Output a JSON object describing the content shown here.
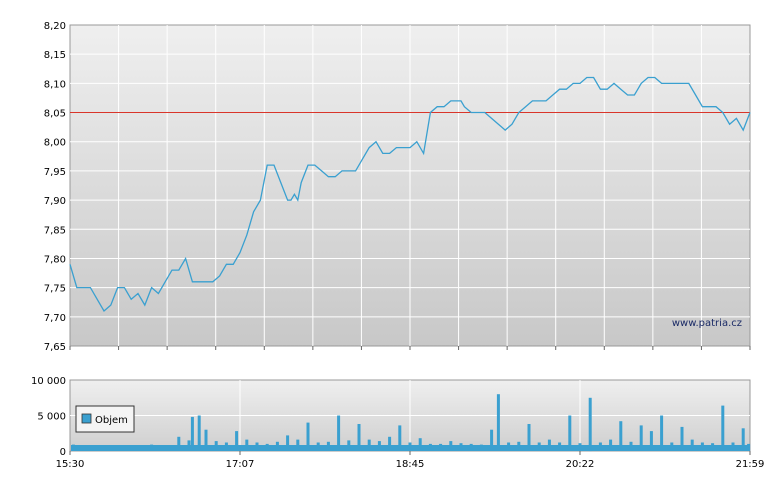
{
  "watermark": "www.patria.cz",
  "chart_data": [
    {
      "type": "line",
      "title": "",
      "xlabel": "",
      "ylabel": "",
      "ylim": [
        7.65,
        8.2
      ],
      "y_ticks": [
        "8,20",
        "8,15",
        "8,10",
        "8,05",
        "8,00",
        "7,95",
        "7,90",
        "7,85",
        "7,80",
        "7,75",
        "7,70",
        "7,65"
      ],
      "reference_line": 8.05,
      "grid": true,
      "colors": {
        "line": "#3aa0d0",
        "reference": "#d9352a",
        "grid": "#ffffff"
      },
      "x": [
        0,
        0.01,
        0.03,
        0.04,
        0.05,
        0.06,
        0.07,
        0.08,
        0.09,
        0.1,
        0.11,
        0.12,
        0.13,
        0.14,
        0.15,
        0.155,
        0.16,
        0.17,
        0.18,
        0.19,
        0.2,
        0.21,
        0.22,
        0.23,
        0.24,
        0.25,
        0.26,
        0.27,
        0.28,
        0.29,
        0.3,
        0.31,
        0.32,
        0.325,
        0.33,
        0.335,
        0.34,
        0.35,
        0.36,
        0.37,
        0.38,
        0.39,
        0.4,
        0.405,
        0.41,
        0.42,
        0.43,
        0.44,
        0.45,
        0.46,
        0.47,
        0.48,
        0.49,
        0.5,
        0.51,
        0.52,
        0.53,
        0.54,
        0.55,
        0.56,
        0.57,
        0.575,
        0.58,
        0.59,
        0.6,
        0.61,
        0.62,
        0.63,
        0.64,
        0.65,
        0.66,
        0.67,
        0.68,
        0.69,
        0.7,
        0.71,
        0.72,
        0.73,
        0.74,
        0.75,
        0.76,
        0.77,
        0.78,
        0.79,
        0.8,
        0.81,
        0.82,
        0.83,
        0.84,
        0.85,
        0.86,
        0.87,
        0.88,
        0.89,
        0.9,
        0.91,
        0.92,
        0.93,
        0.94,
        0.95,
        0.96,
        0.97,
        0.98,
        0.99,
        1.0
      ],
      "values": [
        7.79,
        7.75,
        7.75,
        7.73,
        7.71,
        7.72,
        7.75,
        7.75,
        7.73,
        7.74,
        7.72,
        7.75,
        7.74,
        7.76,
        7.78,
        7.78,
        7.78,
        7.8,
        7.76,
        7.76,
        7.76,
        7.76,
        7.77,
        7.79,
        7.79,
        7.81,
        7.84,
        7.88,
        7.9,
        7.96,
        7.96,
        7.93,
        7.9,
        7.9,
        7.91,
        7.9,
        7.93,
        7.96,
        7.96,
        7.95,
        7.94,
        7.94,
        7.95,
        7.95,
        7.95,
        7.95,
        7.97,
        7.99,
        8.0,
        7.98,
        7.98,
        7.99,
        7.99,
        7.99,
        8.0,
        7.98,
        8.05,
        8.06,
        8.06,
        8.07,
        8.07,
        8.07,
        8.06,
        8.05,
        8.05,
        8.05,
        8.04,
        8.03,
        8.02,
        8.03,
        8.05,
        8.06,
        8.07,
        8.07,
        8.07,
        8.08,
        8.09,
        8.09,
        8.1,
        8.1,
        8.11,
        8.11,
        8.09,
        8.09,
        8.1,
        8.09,
        8.08,
        8.08,
        8.1,
        8.11,
        8.11,
        8.1,
        8.1,
        8.1,
        8.1,
        8.1,
        8.08,
        8.06,
        8.06,
        8.06,
        8.05,
        8.03,
        8.04,
        8.02,
        8.05
      ]
    },
    {
      "type": "bar",
      "title": "",
      "xlabel": "",
      "ylabel": "",
      "ylim": [
        0,
        10000
      ],
      "y_ticks": [
        "10 000",
        "5 000",
        "0"
      ],
      "x_ticks": [
        "15:30",
        "17:07",
        "18:45",
        "20:22",
        "21:59"
      ],
      "legend": {
        "label": "Objem",
        "placement": "middle-left"
      },
      "colors": {
        "bar": "#3aa0d0"
      },
      "volume_bars": [
        {
          "x": 0.005,
          "v": 900
        },
        {
          "x": 0.02,
          "v": 700
        },
        {
          "x": 0.04,
          "v": 500
        },
        {
          "x": 0.06,
          "v": 800
        },
        {
          "x": 0.08,
          "v": 600
        },
        {
          "x": 0.1,
          "v": 500
        },
        {
          "x": 0.12,
          "v": 900
        },
        {
          "x": 0.14,
          "v": 700
        },
        {
          "x": 0.16,
          "v": 2000
        },
        {
          "x": 0.175,
          "v": 1500
        },
        {
          "x": 0.18,
          "v": 4800
        },
        {
          "x": 0.19,
          "v": 5000
        },
        {
          "x": 0.2,
          "v": 3000
        },
        {
          "x": 0.215,
          "v": 1400
        },
        {
          "x": 0.23,
          "v": 1200
        },
        {
          "x": 0.245,
          "v": 2800
        },
        {
          "x": 0.26,
          "v": 1600
        },
        {
          "x": 0.275,
          "v": 1200
        },
        {
          "x": 0.29,
          "v": 1000
        },
        {
          "x": 0.305,
          "v": 1300
        },
        {
          "x": 0.32,
          "v": 2200
        },
        {
          "x": 0.335,
          "v": 1600
        },
        {
          "x": 0.35,
          "v": 4000
        },
        {
          "x": 0.365,
          "v": 1200
        },
        {
          "x": 0.38,
          "v": 1300
        },
        {
          "x": 0.395,
          "v": 5000
        },
        {
          "x": 0.41,
          "v": 1500
        },
        {
          "x": 0.425,
          "v": 3800
        },
        {
          "x": 0.44,
          "v": 1600
        },
        {
          "x": 0.455,
          "v": 1400
        },
        {
          "x": 0.47,
          "v": 2000
        },
        {
          "x": 0.485,
          "v": 3600
        },
        {
          "x": 0.5,
          "v": 1200
        },
        {
          "x": 0.515,
          "v": 1800
        },
        {
          "x": 0.53,
          "v": 1000
        },
        {
          "x": 0.545,
          "v": 1000
        },
        {
          "x": 0.56,
          "v": 1400
        },
        {
          "x": 0.575,
          "v": 1100
        },
        {
          "x": 0.59,
          "v": 1000
        },
        {
          "x": 0.605,
          "v": 900
        },
        {
          "x": 0.62,
          "v": 3000
        },
        {
          "x": 0.63,
          "v": 8000
        },
        {
          "x": 0.645,
          "v": 1200
        },
        {
          "x": 0.66,
          "v": 1300
        },
        {
          "x": 0.675,
          "v": 3800
        },
        {
          "x": 0.69,
          "v": 1200
        },
        {
          "x": 0.705,
          "v": 1600
        },
        {
          "x": 0.72,
          "v": 1200
        },
        {
          "x": 0.735,
          "v": 5000
        },
        {
          "x": 0.75,
          "v": 1100
        },
        {
          "x": 0.765,
          "v": 7500
        },
        {
          "x": 0.78,
          "v": 1200
        },
        {
          "x": 0.795,
          "v": 1600
        },
        {
          "x": 0.81,
          "v": 4200
        },
        {
          "x": 0.825,
          "v": 1300
        },
        {
          "x": 0.84,
          "v": 3600
        },
        {
          "x": 0.855,
          "v": 2800
        },
        {
          "x": 0.87,
          "v": 5000
        },
        {
          "x": 0.885,
          "v": 1200
        },
        {
          "x": 0.9,
          "v": 3400
        },
        {
          "x": 0.915,
          "v": 1600
        },
        {
          "x": 0.93,
          "v": 1200
        },
        {
          "x": 0.945,
          "v": 1100
        },
        {
          "x": 0.96,
          "v": 6400
        },
        {
          "x": 0.975,
          "v": 1200
        },
        {
          "x": 0.99,
          "v": 3200
        },
        {
          "x": 0.998,
          "v": 1000
        }
      ]
    }
  ]
}
